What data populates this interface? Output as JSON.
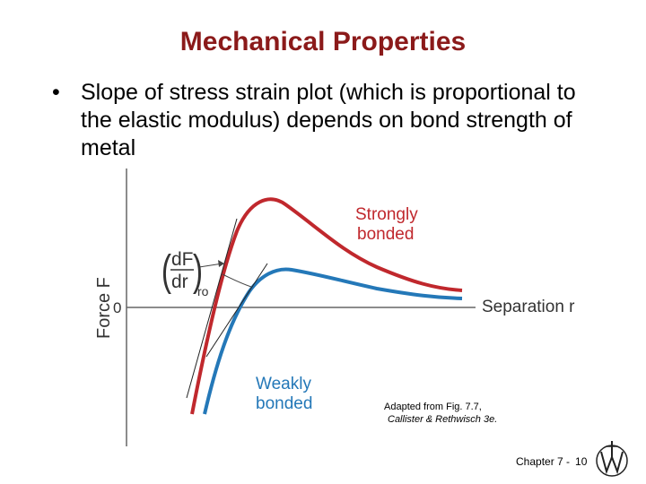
{
  "slide": {
    "title": "Mechanical Properties",
    "bullet_marker": "•",
    "bullet_text": "Slope of stress strain plot (which is proportional to the elastic modulus) depends on bond strength of metal"
  },
  "diagram": {
    "y_axis_label": "Force F",
    "zero_label": "0",
    "x_axis_label": "Separation r",
    "strong_label_line1": "Strongly",
    "strong_label_line2": "bonded",
    "weak_label_line1": "Weakly",
    "weak_label_line2": "bonded",
    "derivative_num": "dF",
    "derivative_den": "dr",
    "derivative_sub": "ro",
    "colors": {
      "strong": "#c0282d",
      "weak": "#2478b8",
      "axis": "#555555"
    }
  },
  "credit": {
    "line1": "Adapted from Fig. 7.7,",
    "line2": "Callister & Rethwisch 3e."
  },
  "footer": {
    "chapter": "Chapter 7 -",
    "page": "10"
  },
  "logo_icon": "publisher-logo-icon"
}
